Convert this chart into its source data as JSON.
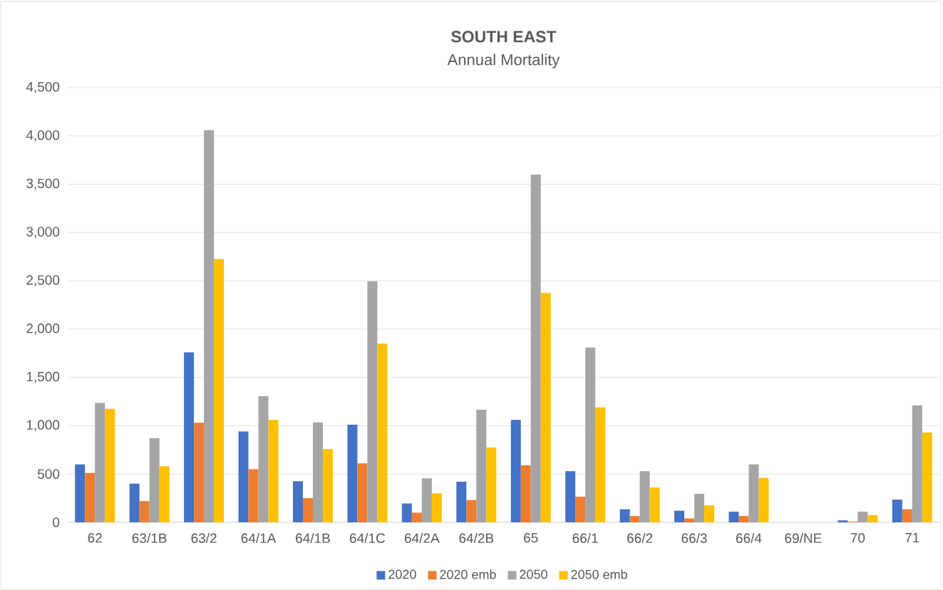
{
  "chart_data": {
    "type": "bar",
    "title": "SOUTH EAST",
    "subtitle": "Annual Mortality",
    "categories": [
      "62",
      "63/1B",
      "63/2",
      "64/1A",
      "64/1B",
      "64/1C",
      "64/2A",
      "64/2B",
      "65",
      "66/1",
      "66/2",
      "66/3",
      "66/4",
      "69/NE",
      "70",
      "71"
    ],
    "series": [
      {
        "name": "2020",
        "color": "#4472c4",
        "values": [
          600,
          400,
          1760,
          940,
          425,
          1010,
          195,
          420,
          1060,
          530,
          135,
          120,
          110,
          0,
          20,
          235
        ]
      },
      {
        "name": "2020 emb",
        "color": "#ed7d31",
        "values": [
          510,
          220,
          1030,
          550,
          250,
          610,
          100,
          230,
          590,
          265,
          65,
          40,
          65,
          0,
          8,
          135
        ]
      },
      {
        "name": "2050",
        "color": "#a5a5a5",
        "values": [
          1235,
          870,
          4060,
          1305,
          1035,
          2495,
          455,
          1165,
          3600,
          1810,
          530,
          295,
          600,
          0,
          110,
          1210
        ]
      },
      {
        "name": "2050 emb",
        "color": "#ffc000",
        "values": [
          1175,
          580,
          2725,
          1060,
          760,
          1850,
          300,
          775,
          2375,
          1190,
          360,
          175,
          460,
          0,
          75,
          930
        ]
      }
    ],
    "ylim": [
      0,
      4500
    ],
    "yticks": [
      0,
      500,
      {
        "value": 1000,
        "label": "1,000"
      },
      {
        "value": 1500,
        "label": "1,500"
      },
      {
        "value": 2000,
        "label": "2,000"
      },
      {
        "value": 2500,
        "label": "2,500"
      },
      {
        "value": 3000,
        "label": "3,000"
      },
      {
        "value": 3500,
        "label": "3,500"
      },
      {
        "value": 4000,
        "label": "4,000"
      },
      {
        "value": 4500,
        "label": "4,500"
      }
    ],
    "grid": "y",
    "legend": "bottom"
  }
}
